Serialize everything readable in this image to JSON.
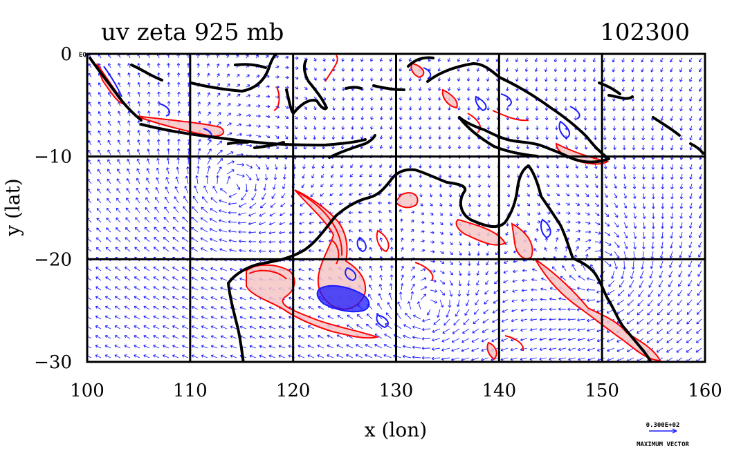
{
  "chart_data": {
    "type": "vector-map",
    "title_left": "uv zeta 925 mb",
    "title_right": "102300",
    "xlabel": "x (lon)",
    "ylabel": "y (lat)",
    "xlim": [
      100,
      160
    ],
    "ylim": [
      -30,
      0
    ],
    "x_ticks": [
      100,
      110,
      120,
      130,
      140,
      150,
      160
    ],
    "x_tick_labels": [
      "100",
      "110",
      "120",
      "130",
      "140",
      "150",
      "160"
    ],
    "y_ticks": [
      0,
      -10,
      -20,
      -30
    ],
    "y_tick_labels": [
      "0",
      "−10",
      "−20",
      "−30"
    ],
    "corner_label": "EQ",
    "grid": true,
    "reference_vector": {
      "value_label": "0.300E+02",
      "caption": "MAXIMUM VECTOR"
    },
    "series": [
      {
        "kind": "vectors",
        "color": "#1a1aff"
      },
      {
        "kind": "vorticity-positive",
        "color": "#ff0000",
        "fill": "#f5c6c6"
      },
      {
        "kind": "vorticity-negative",
        "color": "#1a1aff"
      },
      {
        "kind": "coastline",
        "color": "#000000"
      }
    ],
    "circulations": [
      {
        "lon": 114,
        "lat": -13,
        "sense": "anticyclonic"
      },
      {
        "lon": 133,
        "lat": -25,
        "sense": "anticyclonic"
      },
      {
        "lon": 150,
        "lat": -21,
        "sense": "anticyclonic"
      }
    ]
  },
  "colors": {
    "vectors": "#1a1aff",
    "positive": "#ff0000",
    "positive_fill": "#f5c6c6",
    "negative": "#1a1aff",
    "coast": "#000000",
    "grid": "#000000"
  }
}
